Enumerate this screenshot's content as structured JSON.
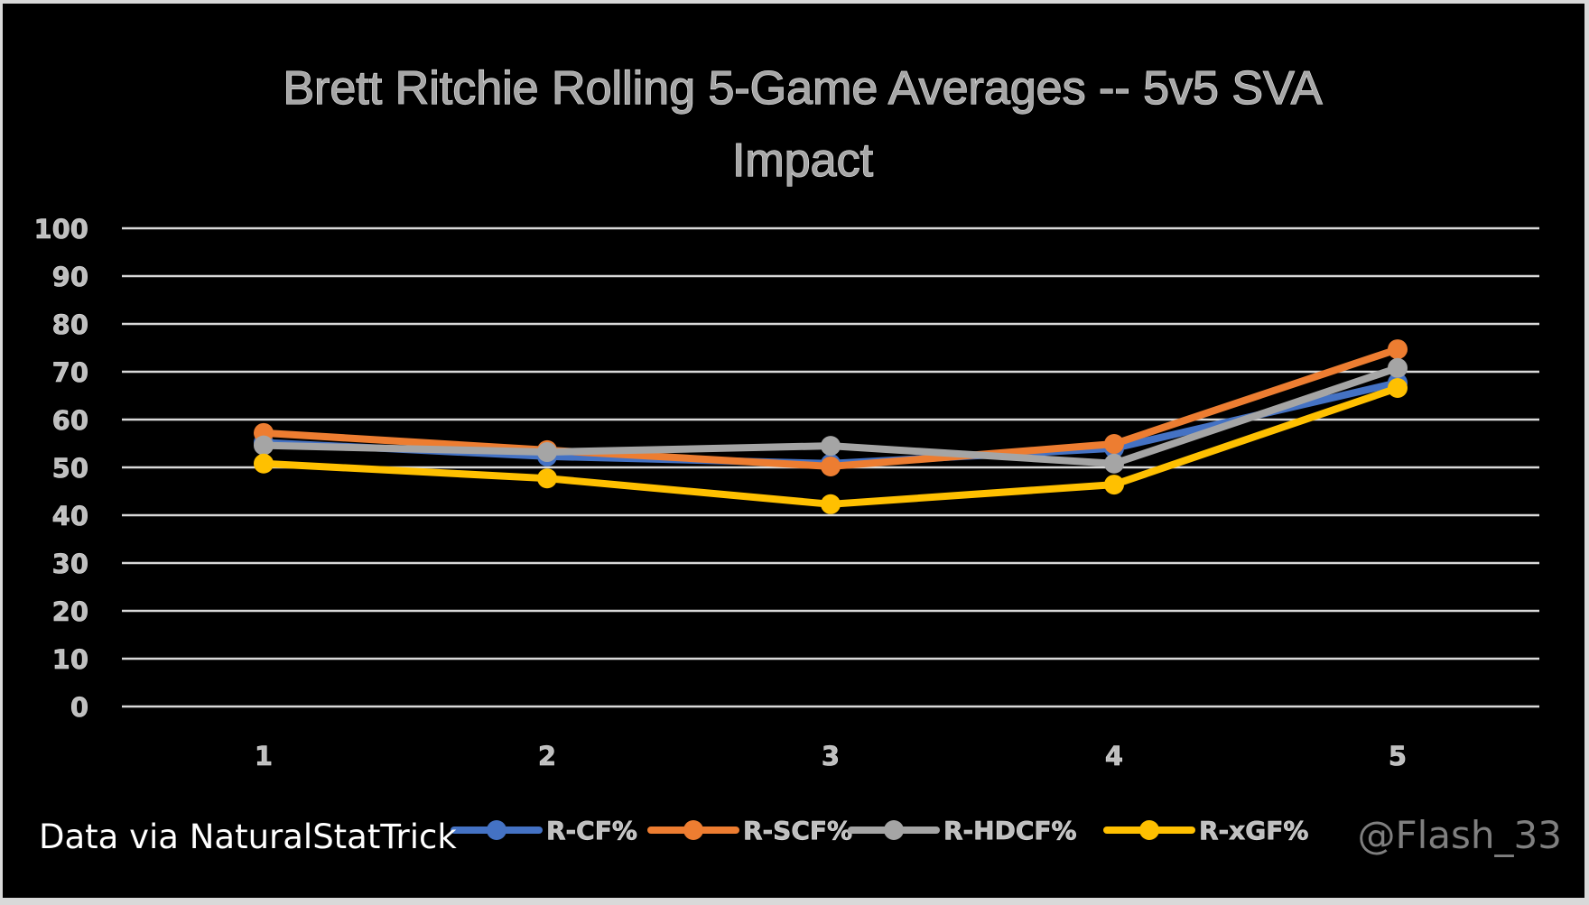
{
  "chart_data": {
    "type": "line",
    "title": "Brett Ritchie Rolling 5-Game Averages -- 5v5 SVA Impact",
    "title_lines": [
      "Brett Ritchie Rolling 5-Game Averages -- 5v5 SVA",
      "Impact"
    ],
    "xlabel": "",
    "ylabel": "",
    "categories": [
      "1",
      "2",
      "3",
      "4",
      "5"
    ],
    "ylim": [
      0,
      100
    ],
    "yticks": [
      "0",
      "10",
      "20",
      "30",
      "40",
      "50",
      "60",
      "70",
      "80",
      "90",
      "100"
    ],
    "grid": true,
    "legend_position": "bottom",
    "series": [
      {
        "name": "R-CF%",
        "color": "#4472c4",
        "values": [
          55.2,
          52.3,
          50.8,
          54.0,
          67.7
        ]
      },
      {
        "name": "R-SCF%",
        "color": "#ed7d31",
        "values": [
          57.2,
          53.6,
          50.2,
          54.9,
          74.7
        ]
      },
      {
        "name": "R-HDCF%",
        "color": "#a5a5a5",
        "values": [
          54.6,
          53.2,
          54.5,
          50.8,
          70.8
        ]
      },
      {
        "name": "R-xGF%",
        "color": "#ffc000",
        "values": [
          50.8,
          47.7,
          42.3,
          46.4,
          66.6
        ]
      }
    ],
    "annotations": {
      "source": "Data via NaturalStatTrick",
      "watermark": "@Flash_33"
    }
  },
  "colors": {
    "background": "#000000",
    "gridline": "#d9d9d9",
    "text": "#bfbfbf"
  }
}
